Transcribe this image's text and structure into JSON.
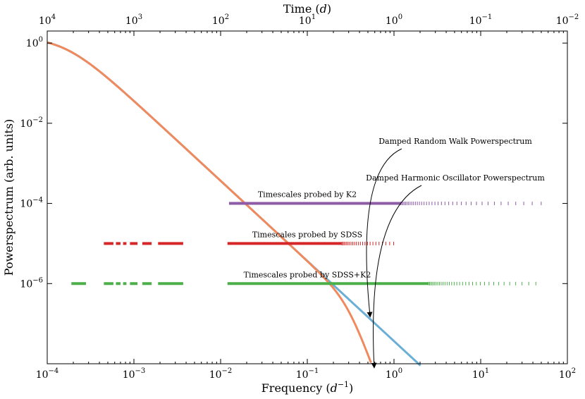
{
  "chart_data": {
    "type": "line",
    "xscale": "log",
    "yscale": "log",
    "xlabel_prefix": "Frequency (",
    "xlabel_unit": "d",
    "xlabel_exp": "−1",
    "xlabel_suffix": ")",
    "top_xlabel_prefix": "Time (",
    "top_xlabel_unit": "d",
    "top_xlabel_suffix": ")",
    "ylabel": "Powerspectrum (arb. units)",
    "xlim": [
      0.0001,
      100
    ],
    "ylim": [
      1e-08,
      2
    ],
    "x_ticks": [
      {
        "value": 0.0001,
        "base": "10",
        "exp": "−4"
      },
      {
        "value": 0.001,
        "base": "10",
        "exp": "−3"
      },
      {
        "value": 0.01,
        "base": "10",
        "exp": "−2"
      },
      {
        "value": 0.1,
        "base": "10",
        "exp": "−1"
      },
      {
        "value": 1,
        "base": "10",
        "exp": "0"
      },
      {
        "value": 10,
        "base": "10",
        "exp": "1"
      },
      {
        "value": 100,
        "base": "10",
        "exp": "2"
      }
    ],
    "top_ticks": [
      {
        "value": 0.0001,
        "base": "10",
        "exp": "4"
      },
      {
        "value": 0.001,
        "base": "10",
        "exp": "3"
      },
      {
        "value": 0.01,
        "base": "10",
        "exp": "2"
      },
      {
        "value": 0.1,
        "base": "10",
        "exp": "1"
      },
      {
        "value": 1,
        "base": "10",
        "exp": "0"
      },
      {
        "value": 10,
        "base": "10",
        "exp": "−1"
      },
      {
        "value": 100,
        "base": "10",
        "exp": "−2"
      }
    ],
    "y_ticks": [
      {
        "value": 1,
        "base": "10",
        "exp": "0"
      },
      {
        "value": 0.01,
        "base": "10",
        "exp": "−2"
      },
      {
        "value": 0.0001,
        "base": "10",
        "exp": "−4"
      },
      {
        "value": 1e-06,
        "base": "10",
        "exp": "−6"
      }
    ],
    "series": [
      {
        "name": "Damped Random Walk Powerspectrum",
        "model": "drw",
        "color": "#6baed6",
        "tau_days": 1000,
        "amplitude": 1.45
      },
      {
        "name": "Damped Harmonic Oscillator Powerspectrum",
        "model": "dho",
        "color": "#f08a5d",
        "tau_days": 1000,
        "cutoff_freq": 0.3,
        "amplitude": 1.45
      }
    ],
    "sampling_bands": [
      {
        "label": "Timescales probed by K2",
        "color": "#8e5ba6",
        "y": 0.0001,
        "segments": [
          [
            0.0125,
            1.2
          ]
        ],
        "sparse_from": 1.2,
        "sparse_to": 50
      },
      {
        "label": "Timescales probed by SDSS",
        "color": "#d62728",
        "y": 1e-05,
        "segments": [
          [
            0.00045,
            0.00058
          ],
          [
            0.00062,
            0.0007
          ],
          [
            0.00075,
            0.00082
          ],
          [
            0.0009,
            0.0011
          ],
          [
            0.00125,
            0.0016
          ],
          [
            0.0019,
            0.0037
          ],
          [
            0.012,
            0.25
          ]
        ],
        "sparse_from": 0.25,
        "sparse_to": 1.0
      },
      {
        "label": "Timescales probed by SDSS+K2",
        "color": "#4daf4a",
        "y": 1e-06,
        "segments": [
          [
            0.00019,
            0.00028
          ],
          [
            0.00045,
            0.00058
          ],
          [
            0.00062,
            0.0007
          ],
          [
            0.00075,
            0.00082
          ],
          [
            0.0009,
            0.0011
          ],
          [
            0.00125,
            0.0016
          ],
          [
            0.0019,
            0.0037
          ],
          [
            0.012,
            2.5
          ]
        ],
        "sparse_from": 2.5,
        "sparse_to": 50
      }
    ],
    "annotations": [
      {
        "text": "Damped Random Walk Powerspectrum",
        "target_series": "drw",
        "target_x": 0.52
      },
      {
        "text": "Damped Harmonic Oscillator Powerspectrum",
        "target_series": "dho",
        "target_x": 0.58
      }
    ]
  }
}
